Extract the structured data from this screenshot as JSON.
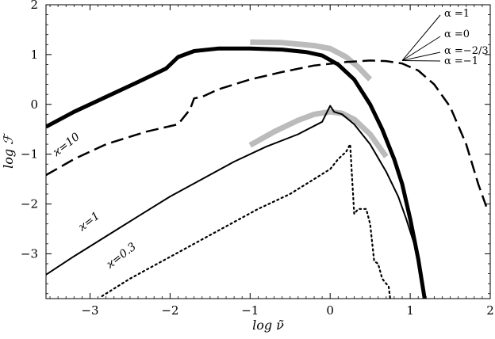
{
  "chart_data": {
    "type": "line",
    "xlabel": "log ν̃",
    "ylabel": "log ℱ",
    "xlim": [
      -3.55,
      2.0
    ],
    "ylim": [
      -3.9,
      2.0
    ],
    "xticks": [
      -3,
      -2,
      -1,
      0,
      1,
      2
    ],
    "yticks": [
      -3,
      -2,
      -1,
      0,
      1,
      2
    ],
    "xtick_labels": [
      "−3",
      "−2",
      "−1",
      "0",
      "1",
      "2"
    ],
    "ytick_labels": [
      "−3",
      "−2",
      "−1",
      "0",
      "1",
      "2"
    ],
    "grid": false,
    "series": [
      {
        "style": "thick-solid",
        "color": "#000000",
        "x": [
          -3.55,
          -3.2,
          -2.8,
          -2.4,
          -2.05,
          -1.9,
          -1.7,
          -1.4,
          -1.0,
          -0.6,
          -0.3,
          -0.1,
          0.1,
          0.3,
          0.5,
          0.65,
          0.8,
          0.9,
          1.0,
          1.1,
          1.18
        ],
        "y": [
          -0.45,
          -0.15,
          0.15,
          0.45,
          0.72,
          0.95,
          1.07,
          1.12,
          1.12,
          1.1,
          1.05,
          0.98,
          0.8,
          0.5,
          0.0,
          -0.5,
          -1.1,
          -1.6,
          -2.3,
          -3.1,
          -3.9
        ]
      },
      {
        "style": "dashed",
        "color": "#000000",
        "x": [
          -3.55,
          -3.2,
          -2.8,
          -2.3,
          -1.9,
          -1.75,
          -1.7,
          -1.6,
          -1.4,
          -1.0,
          -0.6,
          -0.2,
          0.2,
          0.5,
          0.7,
          0.9,
          1.1,
          1.3,
          1.5,
          1.7,
          1.85,
          1.95
        ],
        "y": [
          -1.42,
          -1.1,
          -0.8,
          -0.55,
          -0.4,
          -0.1,
          0.12,
          0.15,
          0.3,
          0.5,
          0.65,
          0.78,
          0.85,
          0.88,
          0.87,
          0.82,
          0.68,
          0.4,
          -0.05,
          -0.8,
          -1.6,
          -2.05
        ]
      },
      {
        "style": "thin-solid",
        "color": "#000000",
        "x": [
          -3.55,
          -3.2,
          -2.8,
          -2.4,
          -2.0,
          -1.6,
          -1.2,
          -0.8,
          -0.4,
          -0.1,
          0.0,
          0.05,
          0.15,
          0.3,
          0.5,
          0.7,
          0.85,
          0.95,
          1.05,
          1.12,
          1.18
        ],
        "y": [
          -3.42,
          -3.05,
          -2.65,
          -2.25,
          -1.85,
          -1.5,
          -1.15,
          -0.85,
          -0.6,
          -0.35,
          -0.03,
          -0.15,
          -0.2,
          -0.4,
          -0.8,
          -1.35,
          -1.85,
          -2.3,
          -2.8,
          -3.3,
          -3.9
        ]
      },
      {
        "style": "dotted",
        "color": "#000000",
        "x": [
          -2.85,
          -2.5,
          -2.1,
          -1.7,
          -1.3,
          -0.9,
          -0.5,
          -0.2,
          0.0,
          0.1,
          0.2,
          0.25,
          0.3,
          0.35,
          0.45,
          0.5,
          0.55,
          0.6,
          0.65,
          0.7,
          0.73,
          0.75
        ],
        "y": [
          -3.85,
          -3.5,
          -3.15,
          -2.8,
          -2.45,
          -2.1,
          -1.8,
          -1.5,
          -1.3,
          -1.1,
          -0.95,
          -0.8,
          -2.2,
          -2.1,
          -2.1,
          -2.4,
          -3.15,
          -3.2,
          -3.5,
          -3.6,
          -3.65,
          -3.9
        ]
      },
      {
        "style": "gray-overlay",
        "color": "#bbbbbb",
        "x": [
          -1.0,
          -0.6,
          -0.2,
          0.0,
          0.2,
          0.35,
          0.5
        ],
        "y": [
          1.25,
          1.24,
          1.18,
          1.12,
          0.95,
          0.75,
          0.5
        ]
      },
      {
        "style": "gray-overlay",
        "color": "#bbbbbb",
        "x": [
          -1.0,
          -0.7,
          -0.4,
          -0.2,
          0.0,
          0.15,
          0.3,
          0.5,
          0.7
        ],
        "y": [
          -0.82,
          -0.55,
          -0.32,
          -0.2,
          -0.15,
          -0.18,
          -0.3,
          -0.6,
          -1.05
        ]
      }
    ],
    "annotations": [
      {
        "text": "ϰ=10",
        "x": -3.42,
        "y": -1.05,
        "angle": -38
      },
      {
        "text": "ϰ=1",
        "x": -3.1,
        "y": -2.55,
        "angle": -38
      },
      {
        "text": "ϰ=0.3",
        "x": -2.75,
        "y": -3.3,
        "angle": -38
      }
    ],
    "legend": {
      "entries": [
        "α =1",
        "α =0",
        "α =−2/3",
        "α =−1"
      ],
      "placement": "top-right",
      "anchor_x": 0.9,
      "anchor_y": 0.88
    }
  }
}
